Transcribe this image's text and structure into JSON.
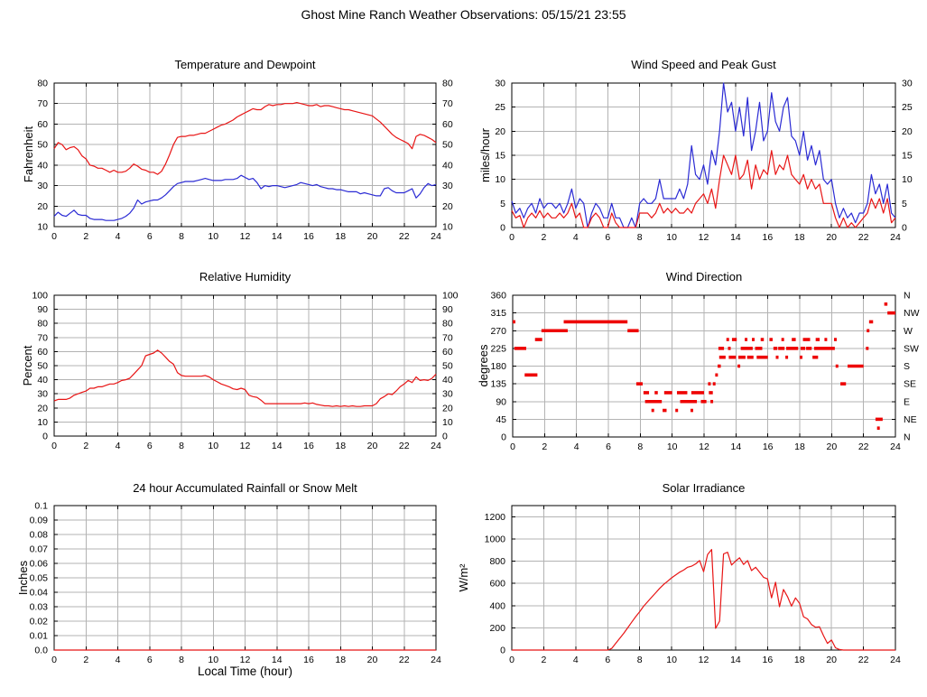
{
  "page": {
    "title": "Ghost Mine Ranch Weather Observations: 05/15/21 23:55"
  },
  "style": {
    "line_red": "#e81515",
    "line_blue": "#2a2ad4",
    "wind_dir_red": "#ee0000",
    "grid": "#b3b3b3",
    "axis": "#000000",
    "background": "#ffffff"
  },
  "x_axis": {
    "label": "Local Time (hour)"
  },
  "chart_data": [
    {
      "type": "line",
      "title": "Temperature and Dewpoint",
      "ylabel": "Fahrenheit",
      "xlim": [
        0,
        24
      ],
      "ylim": [
        10,
        80
      ],
      "xticks": [
        0,
        2,
        4,
        6,
        8,
        10,
        12,
        14,
        16,
        18,
        20,
        22,
        24
      ],
      "yticks": [
        10,
        20,
        30,
        40,
        50,
        60,
        70,
        80
      ],
      "mirror_yticks": true,
      "grid": true,
      "series": [
        {
          "name": "dewpoint",
          "color": "#2a2ad4",
          "x_start": 0,
          "x_step": 0.25,
          "y": [
            15,
            17,
            15.5,
            15,
            16.5,
            18,
            16,
            15.5,
            15.5,
            14,
            13.5,
            13.5,
            13.5,
            13,
            13,
            13,
            13.5,
            14,
            15,
            16.5,
            19,
            23,
            21,
            22,
            22.5,
            23,
            23,
            24,
            25.5,
            27.5,
            29.5,
            31,
            31.5,
            32,
            32,
            32,
            32.5,
            33,
            33.5,
            33,
            32.5,
            32.5,
            32.5,
            33,
            33,
            33,
            33.5,
            35,
            34,
            33,
            33.5,
            31.5,
            28.5,
            30,
            29.5,
            30,
            30,
            29.5,
            29,
            29.5,
            30,
            30.5,
            31.5,
            31,
            30.5,
            30,
            30.5,
            29.5,
            29,
            28.5,
            28.5,
            28,
            28,
            27.5,
            27,
            27,
            27,
            26,
            26.5,
            26,
            25.5,
            25,
            25,
            28.5,
            29,
            27.5,
            26.5,
            26.5,
            26.5,
            27.5,
            28.5,
            24,
            26,
            29,
            31,
            30,
            30.5
          ]
        },
        {
          "name": "temperature",
          "color": "#e81515",
          "x_start": 0,
          "x_step": 0.25,
          "y": [
            48,
            51,
            50,
            47.5,
            48.5,
            49,
            47.5,
            44.5,
            43,
            40,
            39.5,
            38.5,
            38.5,
            37.5,
            36.5,
            37.5,
            36.5,
            36.5,
            37,
            38.5,
            40.5,
            39.5,
            38,
            37.5,
            36.5,
            36.5,
            35.5,
            37,
            40.5,
            45,
            50,
            53.5,
            54,
            54,
            54.5,
            54.5,
            55,
            55.5,
            55.5,
            56.5,
            57.5,
            58.5,
            59.5,
            60,
            61,
            62,
            63.5,
            64.5,
            65.5,
            66.5,
            67.5,
            67,
            67,
            68.5,
            69.5,
            69,
            69.5,
            69.5,
            70,
            70,
            70,
            70.5,
            70,
            69.5,
            69,
            69,
            69.5,
            68.5,
            69,
            69,
            68.5,
            68,
            67.5,
            67,
            67,
            66.5,
            66,
            65.5,
            65,
            64.5,
            64,
            62.5,
            61,
            59,
            57,
            55,
            53.5,
            52.5,
            51.5,
            50.5,
            48,
            54,
            55,
            54.5,
            53.5,
            52.5,
            51
          ]
        }
      ]
    },
    {
      "type": "line",
      "title": "Wind Speed and Peak Gust",
      "ylabel": "miles/hour",
      "xlim": [
        0,
        24
      ],
      "ylim": [
        0,
        30
      ],
      "xticks": [
        0,
        2,
        4,
        6,
        8,
        10,
        12,
        14,
        16,
        18,
        20,
        22,
        24
      ],
      "yticks": [
        0,
        5,
        10,
        15,
        20,
        25,
        30
      ],
      "mirror_yticks": true,
      "grid": true,
      "series": [
        {
          "name": "peak_gust",
          "color": "#2a2ad4",
          "x_start": 0,
          "x_step": 0.25,
          "y": [
            5.5,
            3,
            4,
            2,
            4,
            5,
            3,
            6,
            4,
            5,
            5,
            4,
            5,
            3,
            5,
            8,
            4,
            6,
            5,
            0,
            3,
            5,
            4,
            2,
            2,
            5,
            2,
            2,
            0,
            0,
            2,
            0,
            5,
            6,
            5,
            5,
            6,
            10,
            6,
            6,
            6,
            6,
            8,
            6,
            9,
            17,
            11,
            10,
            13,
            9,
            16,
            13,
            20,
            30,
            24,
            26,
            20,
            25,
            19,
            27,
            16,
            20,
            26,
            18,
            20,
            28,
            22,
            20,
            25,
            27,
            19,
            18,
            15,
            20,
            14,
            17,
            13,
            16,
            10,
            9,
            10,
            5,
            2,
            4,
            2,
            3,
            1,
            3,
            3,
            5,
            11,
            7,
            9,
            5,
            9,
            3,
            2
          ]
        },
        {
          "name": "wind_speed",
          "color": "#e81515",
          "x_start": 0,
          "x_step": 0.25,
          "y": [
            3.5,
            2,
            2.5,
            0,
            2,
            3,
            2,
            3.5,
            2,
            3,
            2,
            2,
            3,
            2,
            3,
            5,
            2,
            3,
            0,
            0,
            2,
            3,
            2,
            0,
            0,
            3,
            1,
            0,
            0,
            0,
            0,
            0,
            3,
            3,
            3,
            2,
            3,
            5,
            3,
            4,
            3,
            4,
            3,
            3,
            4,
            3,
            5,
            6,
            7,
            5,
            8,
            4,
            10,
            15,
            13,
            11,
            15,
            10,
            11,
            14,
            8,
            13,
            10,
            12,
            11,
            16,
            11,
            13,
            12,
            15,
            11,
            10,
            9,
            11,
            8,
            10,
            8,
            9,
            5,
            5,
            5,
            2,
            0,
            2,
            0,
            1,
            0,
            1,
            2,
            3,
            6,
            4,
            6,
            3,
            6,
            1,
            2
          ]
        }
      ]
    },
    {
      "type": "line",
      "title": "Relative Humidity",
      "ylabel": "Percent",
      "xlim": [
        0,
        24
      ],
      "ylim": [
        0,
        100
      ],
      "xticks": [
        0,
        2,
        4,
        6,
        8,
        10,
        12,
        14,
        16,
        18,
        20,
        22,
        24
      ],
      "yticks": [
        0,
        10,
        20,
        30,
        40,
        50,
        60,
        70,
        80,
        90,
        100
      ],
      "mirror_yticks": true,
      "grid": true,
      "series": [
        {
          "name": "relative_humidity",
          "color": "#e81515",
          "x_start": 0,
          "x_step": 0.25,
          "y": [
            25,
            26,
            26,
            26,
            27,
            29,
            30,
            31,
            32,
            34,
            34,
            35,
            35,
            36,
            37,
            37,
            38,
            39.5,
            40,
            41,
            44,
            47,
            50,
            57,
            58,
            59,
            61,
            59,
            56,
            53,
            51,
            45,
            43,
            42.5,
            42.5,
            42.5,
            42.5,
            42.5,
            43,
            42,
            40,
            38.5,
            37,
            36,
            35,
            33.5,
            33,
            34,
            33,
            29,
            28,
            27.5,
            25.5,
            23,
            23,
            23,
            23,
            23,
            23,
            23,
            23,
            23,
            23,
            23.5,
            23,
            23.5,
            22.5,
            22,
            21.5,
            21.5,
            21,
            21.5,
            21,
            21.5,
            21,
            21.5,
            21,
            21,
            21.5,
            21.5,
            21.5,
            23,
            26.5,
            28,
            30,
            29.5,
            32,
            35,
            37,
            39.5,
            38,
            42,
            39.5,
            40,
            39.5,
            41,
            44
          ]
        }
      ]
    },
    {
      "type": "scatter",
      "title": "Wind Direction",
      "ylabel": "degrees",
      "xlim": [
        0,
        24
      ],
      "ylim": [
        0,
        360
      ],
      "xticks": [
        0,
        2,
        4,
        6,
        8,
        10,
        12,
        14,
        16,
        18,
        20,
        22,
        24
      ],
      "yticks": [
        0,
        45,
        90,
        135,
        180,
        225,
        270,
        315,
        360
      ],
      "right_labels": [
        "N",
        "NE",
        "E",
        "SE",
        "S",
        "SW",
        "W",
        "NW",
        "N"
      ],
      "grid": true,
      "segment_color": "#ee0000",
      "segments": [
        [
          0.0,
          0.1,
          292.5
        ],
        [
          0.1,
          0.85,
          225
        ],
        [
          0.75,
          1.55,
          157.5
        ],
        [
          1.4,
          1.85,
          247.5
        ],
        [
          1.8,
          3.45,
          270
        ],
        [
          3.2,
          7.2,
          292.5
        ],
        [
          7.2,
          7.9,
          270
        ],
        [
          7.75,
          8.15,
          135
        ],
        [
          8.2,
          8.55,
          112.5
        ],
        [
          8.3,
          9.35,
          90
        ],
        [
          8.7,
          8.8,
          67.5
        ],
        [
          8.9,
          9.1,
          112.5
        ],
        [
          9.4,
          9.65,
          67.5
        ],
        [
          9.5,
          10.0,
          112.5
        ],
        [
          10.2,
          10.35,
          67.5
        ],
        [
          10.3,
          10.95,
          112.5
        ],
        [
          10.5,
          11.55,
          90
        ],
        [
          11.15,
          11.3,
          67.5
        ],
        [
          11.2,
          12.0,
          112.5
        ],
        [
          11.8,
          12.15,
          90
        ],
        [
          12.25,
          12.35,
          135
        ],
        [
          12.3,
          12.55,
          112.5
        ],
        [
          12.4,
          12.5,
          90
        ],
        [
          12.55,
          12.65,
          135
        ],
        [
          12.7,
          12.8,
          157.5
        ],
        [
          12.85,
          13.05,
          180
        ],
        [
          12.9,
          13.25,
          225
        ],
        [
          12.95,
          13.35,
          202.5
        ],
        [
          13.4,
          13.55,
          247.5
        ],
        [
          13.5,
          13.65,
          225
        ],
        [
          13.55,
          14.0,
          202.5
        ],
        [
          13.75,
          14.05,
          247.5
        ],
        [
          14.1,
          14.25,
          180
        ],
        [
          14.15,
          14.6,
          202.5
        ],
        [
          14.3,
          15.05,
          225
        ],
        [
          14.55,
          14.65,
          247.5
        ],
        [
          14.7,
          15.1,
          202.5
        ],
        [
          15.0,
          15.1,
          247.5
        ],
        [
          15.2,
          15.65,
          225
        ],
        [
          15.3,
          16.0,
          202.5
        ],
        [
          15.55,
          15.75,
          247.5
        ],
        [
          16.1,
          16.3,
          247.5
        ],
        [
          16.35,
          16.6,
          225
        ],
        [
          16.5,
          16.6,
          202.5
        ],
        [
          16.65,
          17.05,
          225
        ],
        [
          16.85,
          16.95,
          247.5
        ],
        [
          17.1,
          17.2,
          202.5
        ],
        [
          17.15,
          17.9,
          225
        ],
        [
          17.5,
          17.75,
          247.5
        ],
        [
          18.0,
          18.1,
          202.5
        ],
        [
          18.05,
          18.35,
          225
        ],
        [
          18.2,
          18.65,
          247.5
        ],
        [
          18.4,
          18.75,
          225
        ],
        [
          18.8,
          19.15,
          202.5
        ],
        [
          18.9,
          19.5,
          225
        ],
        [
          19.0,
          19.25,
          247.5
        ],
        [
          19.55,
          19.65,
          247.5
        ],
        [
          19.5,
          20.2,
          225
        ],
        [
          20.15,
          20.25,
          247.5
        ],
        [
          20.25,
          20.4,
          180
        ],
        [
          20.55,
          20.9,
          135
        ],
        [
          21.0,
          22.0,
          180
        ],
        [
          22.15,
          22.25,
          225
        ],
        [
          22.2,
          22.35,
          270
        ],
        [
          22.35,
          22.6,
          292.5
        ],
        [
          22.75,
          23.2,
          45
        ],
        [
          22.85,
          22.95,
          22.5
        ],
        [
          23.3,
          23.5,
          337.5
        ],
        [
          23.5,
          24.0,
          315
        ]
      ]
    },
    {
      "type": "line",
      "title": "24 hour Accumulated Rainfall or Snow Melt",
      "ylabel": "Inches",
      "xlim": [
        0,
        24
      ],
      "ylim": [
        0,
        0.1
      ],
      "xticks": [
        0,
        2,
        4,
        6,
        8,
        10,
        12,
        14,
        16,
        18,
        20,
        22,
        24
      ],
      "yticks": [
        0,
        0.01,
        0.02,
        0.03,
        0.04,
        0.05,
        0.06,
        0.07,
        0.08,
        0.09,
        0.1
      ],
      "ytick_labels": [
        "0.0",
        "0.01",
        "0.02",
        "0.03",
        "0.04",
        "0.05",
        "0.06",
        "0.07",
        "0.08",
        "0.09",
        "0.1"
      ],
      "mirror_yticks": false,
      "grid": true,
      "series": [
        {
          "name": "accumulated_rainfall",
          "color": "#e81515",
          "x": [
            0,
            24
          ],
          "y": [
            0,
            0
          ]
        }
      ]
    },
    {
      "type": "line",
      "title": "Solar Irradiance",
      "ylabel": "W/m²",
      "xlim": [
        0,
        24
      ],
      "ylim": [
        0,
        1300
      ],
      "xticks": [
        0,
        2,
        4,
        6,
        8,
        10,
        12,
        14,
        16,
        18,
        20,
        22,
        24
      ],
      "yticks": [
        0,
        200,
        400,
        600,
        800,
        1000,
        1200
      ],
      "mirror_yticks": false,
      "grid": true,
      "series": [
        {
          "name": "solar_irradiance",
          "color": "#e81515",
          "x_start": 0,
          "x_step": 0.25,
          "y": [
            0,
            0,
            0,
            0,
            0,
            0,
            0,
            0,
            0,
            0,
            0,
            0,
            0,
            0,
            0,
            0,
            0,
            0,
            0,
            0,
            0,
            0,
            0,
            0,
            0,
            15,
            60,
            105,
            150,
            200,
            250,
            300,
            345,
            395,
            435,
            475,
            515,
            555,
            590,
            620,
            650,
            675,
            700,
            720,
            745,
            755,
            775,
            805,
            705,
            860,
            905,
            195,
            260,
            865,
            880,
            765,
            800,
            830,
            770,
            805,
            715,
            745,
            700,
            655,
            640,
            470,
            610,
            390,
            545,
            480,
            395,
            470,
            420,
            300,
            280,
            230,
            205,
            210,
            130,
            60,
            90,
            20,
            5,
            0,
            0,
            0,
            0,
            0,
            0,
            0,
            0,
            0,
            0,
            0,
            0,
            0,
            0
          ]
        }
      ]
    }
  ]
}
